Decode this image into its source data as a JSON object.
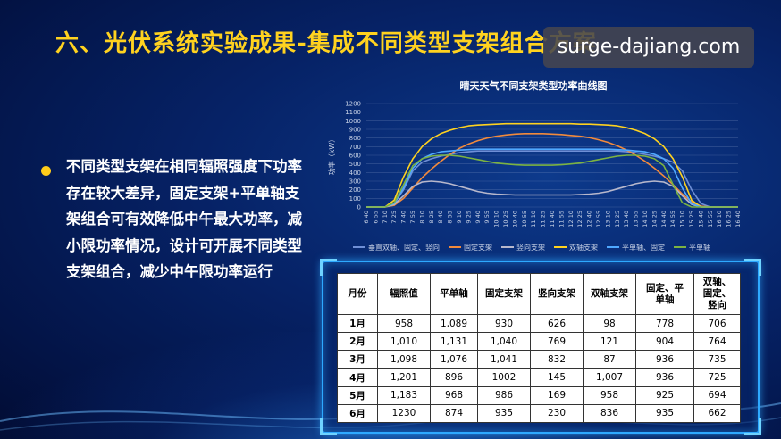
{
  "slide_title": "六、光伏系统实验成果-集成不同类型支架组合方案",
  "watermark": "surge-dajiang.com",
  "bullet_text": "不同类型支架在相同辐照强度下功率存在较大差异，固定支架+平单轴支架组合可有效降低中午最大功率，减小限功率情况，设计可开展不同类型支架组合，减少中午限功率运行",
  "colors": {
    "title": "#ffd21f",
    "bullet": "#ffcc1a",
    "table_border": "#2ea9ff"
  },
  "chart_data": {
    "type": "line",
    "title": "晴天天气不同支架类型功率曲线图",
    "xlabel": "",
    "ylabel": "功率（kW）",
    "ylim": [
      0,
      1200
    ],
    "yticks": [
      0,
      100,
      200,
      300,
      400,
      500,
      600,
      700,
      800,
      900,
      1000,
      1100,
      1200
    ],
    "grid": true,
    "legend_position": "bottom",
    "x": [
      "6:40",
      "6:55",
      "7:10",
      "7:25",
      "7:40",
      "7:55",
      "8:10",
      "8:25",
      "8:40",
      "8:55",
      "9:10",
      "9:25",
      "9:40",
      "9:55",
      "10:10",
      "10:25",
      "10:40",
      "10:55",
      "11:10",
      "11:25",
      "11:40",
      "11:55",
      "12:10",
      "12:25",
      "12:40",
      "12:55",
      "13:10",
      "13:25",
      "13:40",
      "13:55",
      "14:10",
      "14:25",
      "14:40",
      "14:55",
      "15:10",
      "15:25",
      "15:40",
      "15:55",
      "16:10",
      "16:25",
      "16:40"
    ],
    "series": [
      {
        "name": "垂直双轴、固定、竖向",
        "color": "#6f8fd6",
        "values": [
          0,
          0,
          0,
          40,
          200,
          420,
          520,
          560,
          590,
          610,
          630,
          640,
          650,
          650,
          650,
          650,
          650,
          650,
          650,
          650,
          650,
          650,
          650,
          650,
          650,
          650,
          650,
          650,
          640,
          630,
          610,
          590,
          560,
          520,
          420,
          200,
          40,
          0,
          0,
          0,
          0
        ]
      },
      {
        "name": "固定支架",
        "color": "#f28a3c",
        "values": [
          0,
          0,
          0,
          20,
          100,
          220,
          340,
          440,
          530,
          610,
          680,
          730,
          770,
          800,
          820,
          835,
          845,
          850,
          850,
          850,
          845,
          840,
          830,
          820,
          805,
          780,
          750,
          710,
          660,
          600,
          530,
          450,
          360,
          260,
          150,
          60,
          10,
          0,
          0,
          0,
          0
        ]
      },
      {
        "name": "竖向支架",
        "color": "#b8b8cc",
        "values": [
          0,
          0,
          0,
          30,
          130,
          240,
          290,
          300,
          290,
          270,
          240,
          210,
          180,
          160,
          150,
          145,
          140,
          140,
          140,
          140,
          140,
          140,
          140,
          145,
          150,
          160,
          180,
          210,
          240,
          270,
          290,
          300,
          290,
          240,
          130,
          30,
          0,
          0,
          0,
          0,
          0
        ]
      },
      {
        "name": "双轴支架",
        "color": "#ffd21f",
        "values": [
          0,
          0,
          0,
          80,
          350,
          560,
          700,
          790,
          850,
          890,
          920,
          940,
          950,
          955,
          960,
          965,
          965,
          965,
          965,
          965,
          965,
          965,
          965,
          960,
          960,
          955,
          950,
          940,
          920,
          890,
          850,
          790,
          700,
          560,
          350,
          80,
          0,
          0,
          0,
          0,
          0
        ]
      },
      {
        "name": "平单轴、固定",
        "color": "#4fa8ff",
        "values": [
          0,
          0,
          0,
          40,
          220,
          450,
          560,
          610,
          640,
          650,
          660,
          665,
          670,
          670,
          670,
          670,
          670,
          670,
          670,
          670,
          670,
          670,
          670,
          670,
          670,
          670,
          670,
          665,
          660,
          650,
          640,
          610,
          560,
          450,
          220,
          40,
          0,
          0,
          0,
          0,
          0
        ]
      },
      {
        "name": "平单轴",
        "color": "#7cb342",
        "values": [
          0,
          0,
          0,
          50,
          260,
          480,
          560,
          590,
          600,
          600,
          590,
          570,
          550,
          530,
          510,
          500,
          490,
          485,
          485,
          485,
          485,
          490,
          500,
          510,
          530,
          550,
          570,
          590,
          600,
          600,
          590,
          560,
          480,
          260,
          50,
          0,
          0,
          0,
          0,
          0,
          0
        ]
      }
    ]
  },
  "table": {
    "headers": [
      "月份",
      "辐照值",
      "平单轴",
      "固定支架",
      "竖向支架",
      "双轴支架",
      "固定、平单轴",
      "双轴、固定、竖向"
    ],
    "rows": [
      [
        "1月",
        "958",
        "1,089",
        "930",
        "626",
        "98",
        "778",
        "706"
      ],
      [
        "2月",
        "1,010",
        "1,131",
        "1,040",
        "769",
        "121",
        "904",
        "764"
      ],
      [
        "3月",
        "1,098",
        "1,076",
        "1,041",
        "832",
        "87",
        "936",
        "735"
      ],
      [
        "4月",
        "1,201",
        "896",
        "1002",
        "145",
        "1,007",
        "936",
        "725"
      ],
      [
        "5月",
        "1,183",
        "968",
        "986",
        "169",
        "958",
        "925",
        "694"
      ],
      [
        "6月",
        "1230",
        "874",
        "935",
        "230",
        "836",
        "935",
        "662"
      ]
    ]
  }
}
